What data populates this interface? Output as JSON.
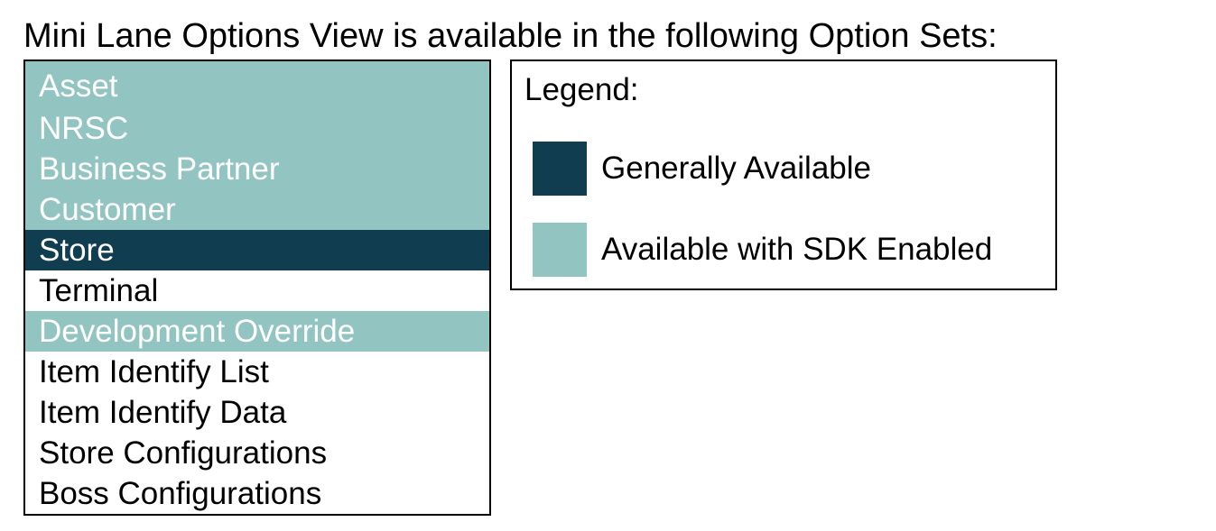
{
  "title": "Mini Lane Options View is available in the following Option Sets:",
  "colors": {
    "generally_available": "#103e50",
    "sdk_enabled": "#92c5c1",
    "not_highlighted": "#ffffff"
  },
  "option_sets": [
    {
      "label": "Asset",
      "status": "sdk"
    },
    {
      "label": "NRSC",
      "status": "sdk"
    },
    {
      "label": "Business Partner",
      "status": "sdk"
    },
    {
      "label": "Customer",
      "status": "sdk"
    },
    {
      "label": "Store",
      "status": "ga"
    },
    {
      "label": "Terminal",
      "status": "none"
    },
    {
      "label": "Development Override",
      "status": "sdk"
    },
    {
      "label": "Item Identify List",
      "status": "none"
    },
    {
      "label": "Item Identify Data",
      "status": "none"
    },
    {
      "label": "Store Configurations",
      "status": "none"
    },
    {
      "label": "Boss Configurations",
      "status": "none"
    }
  ],
  "legend": {
    "title": "Legend:",
    "items": [
      {
        "label": "Generally Available",
        "status": "ga"
      },
      {
        "label": "Available with SDK Enabled",
        "status": "sdk"
      }
    ]
  }
}
